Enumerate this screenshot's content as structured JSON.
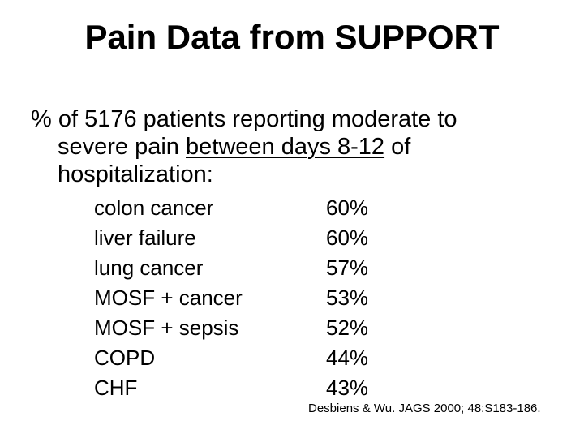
{
  "title": "Pain Data from SUPPORT",
  "intro": {
    "line1": "% of 5176 patients reporting moderate to",
    "line2_before": "severe pain ",
    "line2_underlined": "between days 8-12",
    "line2_after": " of",
    "line3": "hospitalization:"
  },
  "rows": [
    {
      "condition": "colon cancer",
      "percent": "60%"
    },
    {
      "condition": "liver failure",
      "percent": "60%"
    },
    {
      "condition": "lung cancer",
      "percent": "57%"
    },
    {
      "condition": "MOSF + cancer",
      "percent": "53%"
    },
    {
      "condition": "MOSF + sepsis",
      "percent": "52%"
    },
    {
      "condition": "COPD",
      "percent": "44%"
    },
    {
      "condition": "CHF",
      "percent": "43%"
    }
  ],
  "citation": "Desbiens & Wu. JAGS 2000; 48:S183-186."
}
